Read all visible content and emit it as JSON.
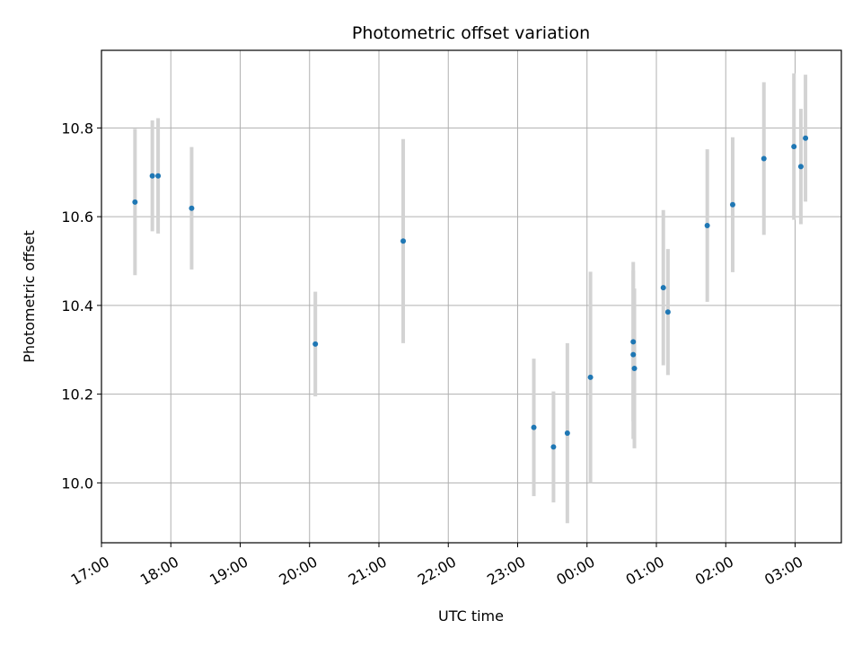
{
  "chart_data": {
    "type": "scatter",
    "title": "Photometric offset variation",
    "xlabel": "UTC time",
    "ylabel": "Photometric offset",
    "grid": true,
    "x_tick_labels": [
      "17:00",
      "18:00",
      "19:00",
      "20:00",
      "21:00",
      "22:00",
      "23:00",
      "00:00",
      "01:00",
      "02:00",
      "03:00"
    ],
    "y_tick_labels": [
      "10.0",
      "10.2",
      "10.4",
      "10.6",
      "10.8"
    ],
    "y_ticks": [
      10.0,
      10.2,
      10.4,
      10.6,
      10.8
    ],
    "xlim": [
      "17:00",
      "03:40"
    ],
    "ylim": [
      9.865,
      10.975
    ],
    "colors": {
      "point": "#1f77b4",
      "errorbar": "#d3d3d3",
      "grid": "#b0b0b0"
    },
    "points": [
      {
        "t": "17:29",
        "y": 10.633,
        "err": 0.165
      },
      {
        "t": "17:44",
        "y": 10.692,
        "err": 0.125
      },
      {
        "t": "17:49",
        "y": 10.692,
        "err": 0.13
      },
      {
        "t": "18:18",
        "y": 10.619,
        "err": 0.138
      },
      {
        "t": "20:05",
        "y": 10.313,
        "err": 0.118
      },
      {
        "t": "21:21",
        "y": 10.545,
        "err": 0.23
      },
      {
        "t": "23:14",
        "y": 10.125,
        "err": 0.155
      },
      {
        "t": "23:31",
        "y": 10.081,
        "err": 0.125
      },
      {
        "t": "23:43",
        "y": 10.112,
        "err": 0.203
      },
      {
        "t": "00:03",
        "y": 10.238,
        "err": 0.238
      },
      {
        "t": "00:40",
        "y": 10.318,
        "err": 0.18
      },
      {
        "t": "00:40",
        "y": 10.289,
        "err": 0.19
      },
      {
        "t": "00:41",
        "y": 10.258,
        "err": 0.18
      },
      {
        "t": "01:06",
        "y": 10.44,
        "err": 0.175
      },
      {
        "t": "01:10",
        "y": 10.385,
        "err": 0.142
      },
      {
        "t": "01:44",
        "y": 10.58,
        "err": 0.172
      },
      {
        "t": "02:06",
        "y": 10.627,
        "err": 0.152
      },
      {
        "t": "02:33",
        "y": 10.731,
        "err": 0.172
      },
      {
        "t": "02:59",
        "y": 10.758,
        "err": 0.165
      },
      {
        "t": "03:05",
        "y": 10.713,
        "err": 0.13
      },
      {
        "t": "03:09",
        "y": 10.777,
        "err": 0.143
      }
    ]
  }
}
